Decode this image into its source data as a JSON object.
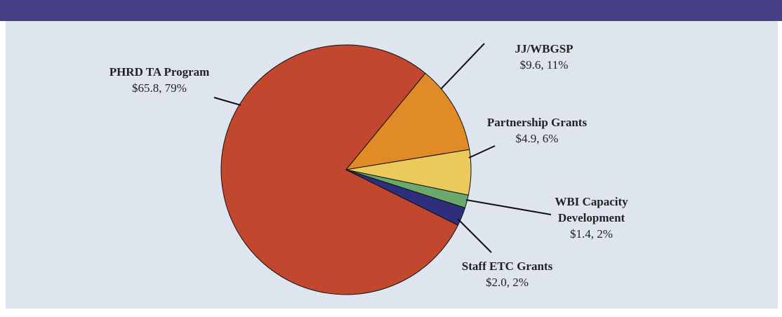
{
  "chart_data": {
    "type": "pie",
    "categories": [
      "PHRD TA Program",
      "JJ/WBGSP",
      "Partnership Grants",
      "WBI Capacity Development",
      "Staff ETC Grants"
    ],
    "values": [
      65.8,
      9.6,
      4.9,
      1.4,
      2.0
    ],
    "value_labels": [
      "$65.8, 79%",
      "$9.6, 11%",
      "$4.9, 6%",
      "$1.4, 2%",
      "$2.0, 2%"
    ],
    "colors": [
      "#c1472f",
      "#e08a28",
      "#ebc95b",
      "#6aa96b",
      "#2f2e7c"
    ]
  }
}
